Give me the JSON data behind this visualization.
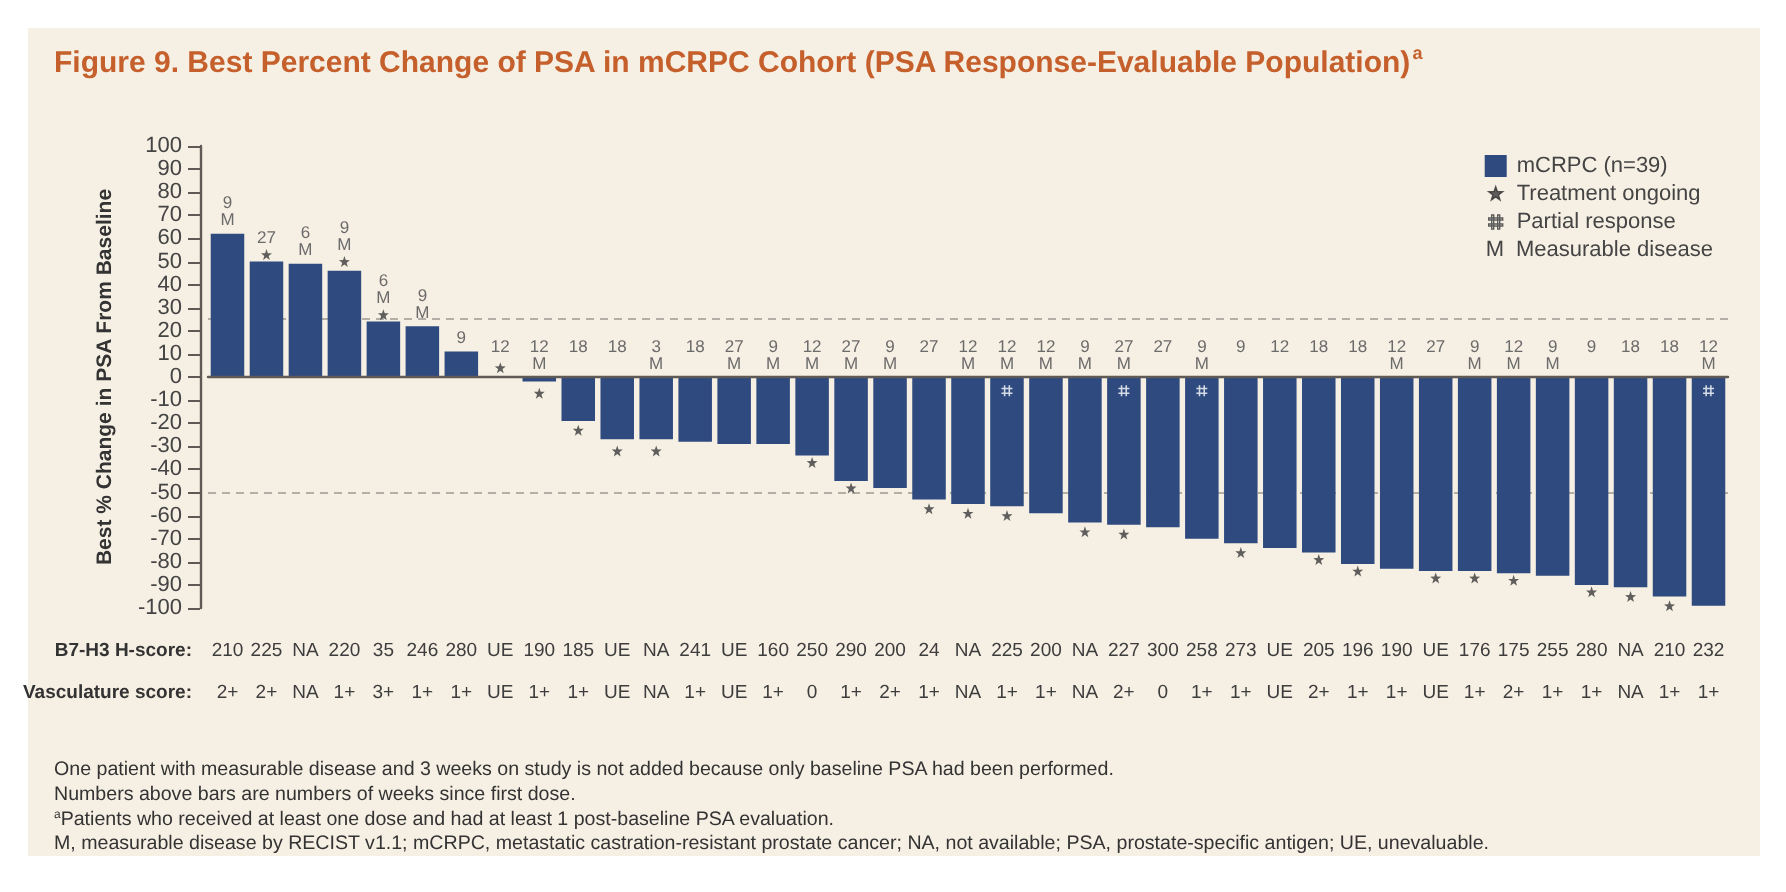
{
  "chart_data": {
    "type": "bar",
    "title": "Figure 9. Best Percent Change of PSA in mCRPC Cohort (PSA Response-Evaluable Population)$^{a}$",
    "ylabel": "Best % Change in PSA From Baseline",
    "categories": [
      "210\n2+",
      "225\n2+",
      "NA\nNA",
      "220\n1+",
      "35\n3+",
      "246\n1+",
      "280\n1+",
      "UE\nUE",
      "190\n1+",
      "185\n1+",
      "UE\nUE",
      "NA\nNA",
      "241\n1+",
      "UE\nUE",
      "160\n1+",
      "250\n0",
      "290\n1+",
      "200\n2+",
      "24\n1+",
      "NA\nNA",
      "225\n1+",
      "200\n1+",
      "NA\nNA",
      "227\n2+",
      "300\n0",
      "258\n1+",
      "273\n1+",
      "UE\nUE",
      "205\n2+",
      "196\n1+",
      "190\n1+",
      "UE\nUE",
      "176\n1+",
      "175\n2+",
      "255\n1+",
      "280\n1+",
      "NA\nNA",
      "210\n1+",
      "232\n1+"
    ],
    "series": [
      {
        "name": "mCRPC (n=39)",
        "color": "#2e4a7f",
        "values": [
          62,
          50,
          49,
          46,
          24,
          22,
          11,
          0,
          -2,
          -19,
          -27,
          -27,
          -28,
          -29,
          -29,
          -34,
          -45,
          -48,
          -53,
          -55,
          -56,
          -59,
          -63,
          -64,
          -65,
          -70,
          -72,
          -74,
          -76,
          -81,
          -83,
          -84,
          -84,
          -85,
          -86,
          -90,
          -91,
          -95,
          -99
        ]
      },
      {
        "name": "Treatment ongoing",
        "type": "scatter",
        "marker": "star",
        "color": "#3a3a3a",
        "values": [
          null,
          53,
          null,
          50,
          27,
          null,
          null,
          4,
          -7,
          -23,
          -32,
          -32,
          null,
          null,
          null,
          -37,
          -48,
          null,
          -57,
          -59,
          -60,
          null,
          -67,
          -68,
          null,
          null,
          -76,
          null,
          -79,
          -84,
          null,
          -87,
          -87,
          -88,
          null,
          -93,
          -95,
          -99,
          null
        ]
      },
      {
        "name": "Partial response",
        "type": "scatter",
        "color": "#ffffff",
        "values": [
          null,
          null,
          null,
          null,
          null,
          null,
          null,
          null,
          null,
          null,
          null,
          null,
          null,
          null,
          null,
          null,
          null,
          null,
          null,
          null,
          -6,
          null,
          null,
          -6,
          null,
          -6,
          null,
          null,
          null,
          null,
          null,
          null,
          null,
          null,
          null,
          null,
          null,
          null,
          -6
        ]
      }
    ],
    "ylim": [
      -100,
      100
    ],
    "yticks": [
      -100,
      -90,
      -80,
      -70,
      -60,
      -50,
      -40,
      -30,
      -20,
      -10,
      0,
      10,
      20,
      30,
      40,
      50,
      60,
      70,
      80,
      90,
      100
    ],
    "ref_lines": [
      {
        "axis": "y",
        "value": 25,
        "color": "#b3aea6",
        "line_style": "dashed"
      },
      {
        "axis": "y",
        "value": -50,
        "color": "#b3aea6",
        "line_style": "dashed"
      }
    ],
    "legend": "top right",
    "annotations": [
      "B7-H3 H-score:",
      "Vasculature score:",
      "M Measurable disease",
      "One patient with measurable disease and 3 weeks on study is not added because only baseline PSA had been performed.",
      "Numbers above bars are numbers of weeks since first dose.",
      "$^{a}$Patients who received at least one dose and had at least 1 post-baseline PSA evaluation.",
      "M, measurable disease by RECIST v1.1; mCRPC, metastatic castration-resistant prostate cancer; NA, not available; PSA, prostate-specific antigen; UE, unevaluable.",
      "9\nM",
      "27",
      "6\nM",
      "9\nM",
      "6\nM",
      "9\nM",
      "9",
      "12",
      "12\nM",
      "18",
      "18",
      "3\nM",
      "18",
      "27\nM",
      "9\nM",
      "12\nM",
      "27\nM",
      "9\nM",
      "27",
      "12\nM",
      "12\nM",
      "12\nM",
      "9\nM",
      "27\nM",
      "27",
      "9\nM",
      "9",
      "12",
      "18",
      "18",
      "12\nM",
      "27",
      "9\nM",
      "12\nM",
      "9\nM",
      "9",
      "18",
      "18",
      "12\nM"
    ]
  }
}
